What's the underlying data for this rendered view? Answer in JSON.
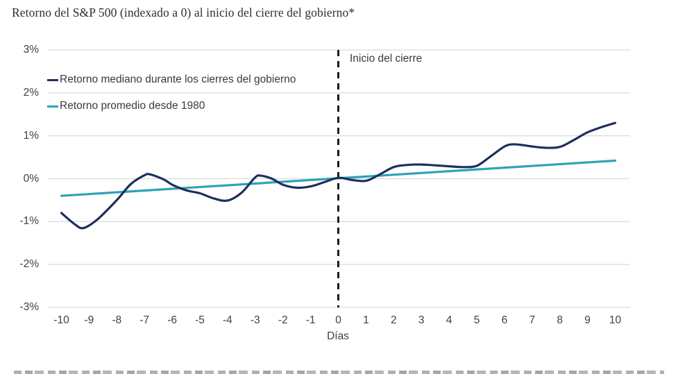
{
  "title": "Retorno del S&P 500 (indexado a 0) al inicio del cierre del gobierno*",
  "chart_data": {
    "type": "line",
    "title": "Retorno del S&P 500 (indexado a 0) al inicio del cierre del gobierno*",
    "xlabel": "Días",
    "ylabel": "",
    "xlim": [
      -10,
      10
    ],
    "ylim": [
      -3,
      3
    ],
    "grid": "horizontal",
    "legend_position": "top-left-inside",
    "x_ticks": [
      -10,
      -9,
      -8,
      -7,
      -6,
      -5,
      -4,
      -3,
      -2,
      -1,
      0,
      1,
      2,
      3,
      4,
      5,
      6,
      7,
      8,
      9,
      10
    ],
    "y_ticks": [
      {
        "value": 3,
        "label": "3%"
      },
      {
        "value": 2,
        "label": "2%"
      },
      {
        "value": 1,
        "label": "1%"
      },
      {
        "value": 0,
        "label": "0%"
      },
      {
        "value": -1,
        "label": "-1%"
      },
      {
        "value": -2,
        "label": "-2%"
      },
      {
        "value": -3,
        "label": "-3%"
      }
    ],
    "vline": {
      "x": 0,
      "label": "Inicio del cierre",
      "style": "dashed",
      "color": "#1a1a1a"
    },
    "series": [
      {
        "name": "Retorno mediano durante los cierres del gobierno",
        "color": "#1e2f5d",
        "smooth": true,
        "points": [
          [
            -10,
            -0.8
          ],
          [
            -9.5,
            -1.07
          ],
          [
            -9.2,
            -1.15
          ],
          [
            -8.7,
            -0.95
          ],
          [
            -8,
            -0.5
          ],
          [
            -7.5,
            -0.13
          ],
          [
            -7,
            0.08
          ],
          [
            -6.8,
            0.1
          ],
          [
            -6.3,
            -0.02
          ],
          [
            -6,
            -0.14
          ],
          [
            -5.5,
            -0.27
          ],
          [
            -5,
            -0.34
          ],
          [
            -4.5,
            -0.46
          ],
          [
            -4,
            -0.51
          ],
          [
            -3.5,
            -0.33
          ],
          [
            -3,
            0.03
          ],
          [
            -2.8,
            0.07
          ],
          [
            -2.4,
            0.0
          ],
          [
            -2,
            -0.14
          ],
          [
            -1.5,
            -0.21
          ],
          [
            -1,
            -0.18
          ],
          [
            -0.5,
            -0.08
          ],
          [
            0,
            0.02
          ],
          [
            0.5,
            -0.03
          ],
          [
            1,
            -0.05
          ],
          [
            1.5,
            0.1
          ],
          [
            2,
            0.27
          ],
          [
            2.5,
            0.32
          ],
          [
            3,
            0.33
          ],
          [
            3.5,
            0.31
          ],
          [
            4,
            0.29
          ],
          [
            4.5,
            0.27
          ],
          [
            5,
            0.3
          ],
          [
            5.5,
            0.52
          ],
          [
            6,
            0.75
          ],
          [
            6.3,
            0.8
          ],
          [
            6.7,
            0.78
          ],
          [
            7,
            0.75
          ],
          [
            7.5,
            0.72
          ],
          [
            8,
            0.74
          ],
          [
            8.5,
            0.9
          ],
          [
            9,
            1.08
          ],
          [
            9.5,
            1.2
          ],
          [
            10,
            1.3
          ]
        ]
      },
      {
        "name": "Retorno promedio desde 1980",
        "color": "#2ea3b4",
        "smooth": false,
        "points": [
          [
            -10,
            -0.4
          ],
          [
            0,
            0.01
          ],
          [
            10,
            0.42
          ]
        ]
      }
    ],
    "colors": {
      "gridline": "#dcdcdc",
      "tick_text": "#404040",
      "annotation_text": "#3a3a3a",
      "title_text": "#2e2e2e"
    }
  }
}
